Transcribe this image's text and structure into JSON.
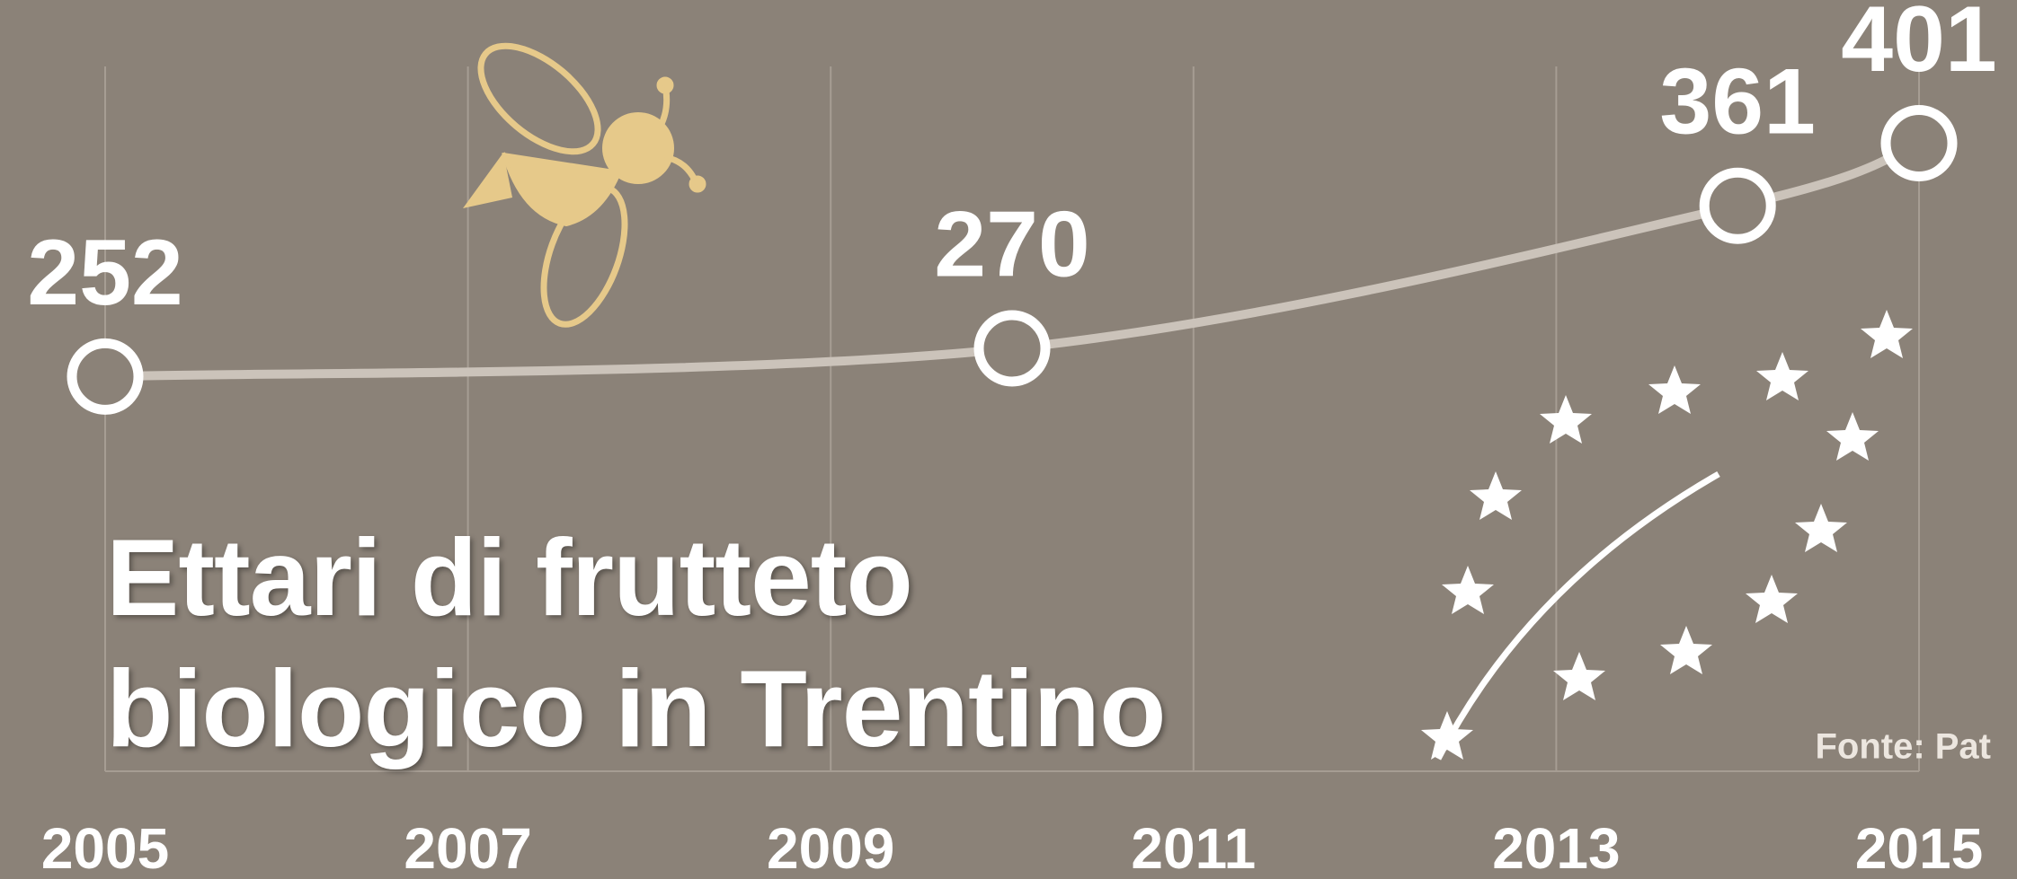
{
  "chart_data": {
    "type": "line",
    "title": "Ettari di frutteto biologico in Trentino",
    "source": "Fonte: Pat",
    "x": [
      2005,
      2010,
      2014,
      2015
    ],
    "values": [
      252,
      270,
      361,
      401
    ],
    "color": "#cbc3ba",
    "xlim": [
      2005,
      2015
    ],
    "xticks": [
      2005,
      2007,
      2009,
      2011,
      2013,
      2015
    ],
    "ylim": [
      0,
      450
    ],
    "grid": true
  }
}
